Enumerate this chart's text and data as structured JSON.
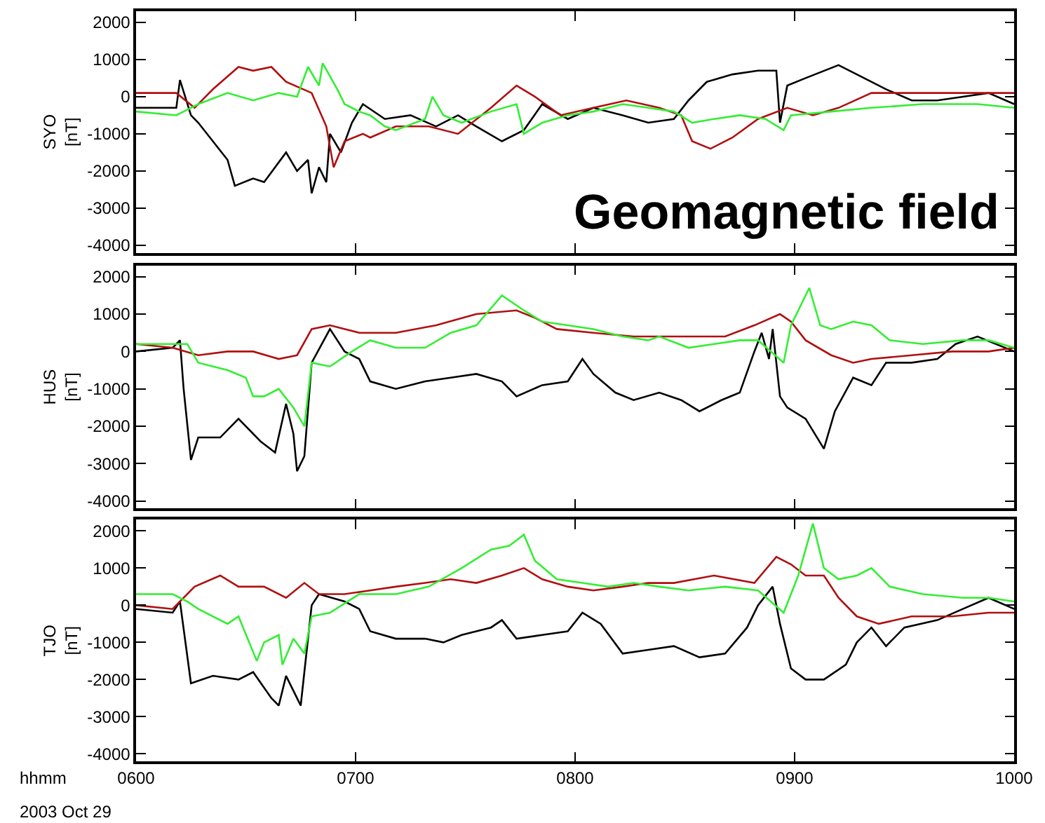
{
  "chart_data": [
    {
      "type": "line",
      "ylabel": "SYO\n[nT]",
      "annotations": [
        "Geomagnetic field"
      ],
      "xlim": [
        "2003-10-29T06:00",
        "2003-10-29T10:00"
      ],
      "xticks": [
        {
          "value": "2003-10-29T06:00",
          "label": null
        },
        {
          "value": "2003-10-29T07:00",
          "label": null
        },
        {
          "value": "2003-10-29T08:00",
          "label": null
        },
        {
          "value": "2003-10-29T09:00",
          "label": null
        },
        {
          "value": "2003-10-29T10:00",
          "label": null
        }
      ],
      "ylim": [
        -4200,
        2300
      ],
      "yticks": [
        -4000,
        -3000,
        -2000,
        -1000,
        0,
        1000,
        2000
      ],
      "tick_labels": "y",
      "marker": "none",
      "line_style": "solid",
      "series": [
        {
          "color": "#000000",
          "x": [
            "2003-10-29T06:00",
            "2003-10-29T06:11",
            "2003-10-29T06:12",
            "2003-10-29T06:15",
            "2003-10-29T06:17",
            "2003-10-29T06:25",
            "2003-10-29T06:27",
            "2003-10-29T06:32",
            "2003-10-29T06:35",
            "2003-10-29T06:41",
            "2003-10-29T06:44",
            "2003-10-29T06:47",
            "2003-10-29T06:48",
            "2003-10-29T06:50",
            "2003-10-29T06:52",
            "2003-10-29T06:53",
            "2003-10-29T06:56",
            "2003-10-29T06:59",
            "2003-10-29T07:02",
            "2003-10-29T07:08",
            "2003-10-29T07:15",
            "2003-10-29T07:22",
            "2003-10-29T07:28",
            "2003-10-29T07:33",
            "2003-10-29T07:40",
            "2003-10-29T07:46",
            "2003-10-29T07:51",
            "2003-10-29T07:58",
            "2003-10-29T08:05",
            "2003-10-29T08:13",
            "2003-10-29T08:20",
            "2003-10-29T08:27",
            "2003-10-29T08:31",
            "2003-10-29T08:36",
            "2003-10-29T08:43",
            "2003-10-29T08:50",
            "2003-10-29T08:55",
            "2003-10-29T08:56",
            "2003-10-29T08:58",
            "2003-10-29T09:03",
            "2003-10-29T09:12",
            "2003-10-29T09:17",
            "2003-10-29T09:25",
            "2003-10-29T09:32",
            "2003-10-29T09:39",
            "2003-10-29T09:46",
            "2003-10-29T09:53",
            "2003-10-29T10:00"
          ],
          "values": [
            -300,
            -300,
            450,
            -500,
            -700,
            -1700,
            -2400,
            -2200,
            -2300,
            -1500,
            -2000,
            -1700,
            -2600,
            -1900,
            -2300,
            -1000,
            -1500,
            -700,
            -200,
            -600,
            -500,
            -800,
            -500,
            -800,
            -1200,
            -900,
            -200,
            -600,
            -300,
            -500,
            -700,
            -600,
            -100,
            400,
            600,
            700,
            700,
            -700,
            300,
            500,
            850,
            600,
            200,
            -100,
            -100,
            0,
            100,
            -200
          ]
        },
        {
          "color": "#b01010",
          "x": [
            "2003-10-29T06:00",
            "2003-10-29T06:11",
            "2003-10-29T06:16",
            "2003-10-29T06:21",
            "2003-10-29T06:28",
            "2003-10-29T06:32",
            "2003-10-29T06:37",
            "2003-10-29T06:41",
            "2003-10-29T06:48",
            "2003-10-29T06:52",
            "2003-10-29T06:54",
            "2003-10-29T06:57",
            "2003-10-29T07:02",
            "2003-10-29T07:04",
            "2003-10-29T07:11",
            "2003-10-29T07:20",
            "2003-10-29T07:28",
            "2003-10-29T07:37",
            "2003-10-29T07:44",
            "2003-10-29T07:49",
            "2003-10-29T07:56",
            "2003-10-29T08:05",
            "2003-10-29T08:14",
            "2003-10-29T08:23",
            "2003-10-29T08:29",
            "2003-10-29T08:32",
            "2003-10-29T08:37",
            "2003-10-29T08:43",
            "2003-10-29T08:50",
            "2003-10-29T08:58",
            "2003-10-29T09:05",
            "2003-10-29T09:12",
            "2003-10-29T09:21",
            "2003-10-29T09:35",
            "2003-10-29T09:46",
            "2003-10-29T10:00"
          ],
          "values": [
            100,
            100,
            -300,
            200,
            800,
            700,
            800,
            400,
            100,
            -800,
            -1900,
            -1200,
            -1000,
            -1100,
            -800,
            -800,
            -1000,
            -300,
            300,
            0,
            -500,
            -300,
            -100,
            -300,
            -500,
            -1200,
            -1400,
            -1100,
            -600,
            -300,
            -500,
            -300,
            100,
            100,
            100,
            100
          ]
        },
        {
          "color": "#33ee33",
          "x": [
            "2003-10-29T06:00",
            "2003-10-29T06:11",
            "2003-10-29T06:17",
            "2003-10-29T06:25",
            "2003-10-29T06:32",
            "2003-10-29T06:39",
            "2003-10-29T06:44",
            "2003-10-29T06:47",
            "2003-10-29T06:50",
            "2003-10-29T06:51",
            "2003-10-29T06:55",
            "2003-10-29T06:57",
            "2003-10-29T07:01",
            "2003-10-29T07:04",
            "2003-10-29T07:08",
            "2003-10-29T07:11",
            "2003-10-29T07:19",
            "2003-10-29T07:21",
            "2003-10-29T07:24",
            "2003-10-29T07:29",
            "2003-10-29T07:37",
            "2003-10-29T07:44",
            "2003-10-29T07:46",
            "2003-10-29T07:51",
            "2003-10-29T07:58",
            "2003-10-29T08:05",
            "2003-10-29T08:13",
            "2003-10-29T08:20",
            "2003-10-29T08:27",
            "2003-10-29T08:32",
            "2003-10-29T08:38",
            "2003-10-29T08:45",
            "2003-10-29T08:52",
            "2003-10-29T08:57",
            "2003-10-29T08:59",
            "2003-10-29T09:10",
            "2003-10-29T09:21",
            "2003-10-29T09:35",
            "2003-10-29T09:50",
            "2003-10-29T10:00"
          ],
          "values": [
            -400,
            -500,
            -200,
            100,
            -100,
            100,
            0,
            800,
            300,
            900,
            200,
            -200,
            -400,
            -500,
            -800,
            -900,
            -600,
            0,
            -500,
            -700,
            -400,
            -200,
            -1000,
            -700,
            -500,
            -400,
            -200,
            -300,
            -400,
            -700,
            -600,
            -500,
            -600,
            -900,
            -500,
            -400,
            -300,
            -200,
            -200,
            -300
          ]
        }
      ]
    },
    {
      "type": "line",
      "ylabel": "HUS\n[nT]",
      "xlim": [
        "2003-10-29T06:00",
        "2003-10-29T10:00"
      ],
      "xticks": [
        {
          "value": "2003-10-29T06:00",
          "label": null
        },
        {
          "value": "2003-10-29T07:00",
          "label": null
        },
        {
          "value": "2003-10-29T08:00",
          "label": null
        },
        {
          "value": "2003-10-29T09:00",
          "label": null
        },
        {
          "value": "2003-10-29T10:00",
          "label": null
        }
      ],
      "ylim": [
        -4200,
        2300
      ],
      "yticks": [
        -4000,
        -3000,
        -2000,
        -1000,
        0,
        1000,
        2000
      ],
      "tick_labels": "y",
      "marker": "none",
      "line_style": "solid",
      "series": [
        {
          "color": "#000000",
          "x": [
            "2003-10-29T06:00",
            "2003-10-29T06:10",
            "2003-10-29T06:12",
            "2003-10-29T06:13",
            "2003-10-29T06:15",
            "2003-10-29T06:17",
            "2003-10-29T06:23",
            "2003-10-29T06:28",
            "2003-10-29T06:34",
            "2003-10-29T06:38",
            "2003-10-29T06:41",
            "2003-10-29T06:43",
            "2003-10-29T06:44",
            "2003-10-29T06:46",
            "2003-10-29T06:48",
            "2003-10-29T06:53",
            "2003-10-29T06:57",
            "2003-10-29T07:01",
            "2003-10-29T07:04",
            "2003-10-29T07:11",
            "2003-10-29T07:19",
            "2003-10-29T07:26",
            "2003-10-29T07:33",
            "2003-10-29T07:40",
            "2003-10-29T07:44",
            "2003-10-29T07:51",
            "2003-10-29T07:58",
            "2003-10-29T08:02",
            "2003-10-29T08:05",
            "2003-10-29T08:11",
            "2003-10-29T08:16",
            "2003-10-29T08:23",
            "2003-10-29T08:29",
            "2003-10-29T08:34",
            "2003-10-29T08:40",
            "2003-10-29T08:45",
            "2003-10-29T08:49",
            "2003-10-29T08:51",
            "2003-10-29T08:53",
            "2003-10-29T08:54",
            "2003-10-29T08:56",
            "2003-10-29T08:58",
            "2003-10-29T09:03",
            "2003-10-29T09:08",
            "2003-10-29T09:11",
            "2003-10-29T09:16",
            "2003-10-29T09:21",
            "2003-10-29T09:25",
            "2003-10-29T09:32",
            "2003-10-29T09:39",
            "2003-10-29T09:44",
            "2003-10-29T09:50",
            "2003-10-29T10:00"
          ],
          "values": [
            0,
            100,
            300,
            -1000,
            -2900,
            -2300,
            -2300,
            -1800,
            -2400,
            -2700,
            -1400,
            -2200,
            -3200,
            -2800,
            -300,
            600,
            0,
            -200,
            -800,
            -1000,
            -800,
            -700,
            -600,
            -800,
            -1200,
            -900,
            -800,
            -200,
            -600,
            -1100,
            -1300,
            -1100,
            -1300,
            -1600,
            -1300,
            -1100,
            0,
            500,
            -200,
            600,
            -1200,
            -1500,
            -1800,
            -2600,
            -1600,
            -700,
            -900,
            -300,
            -300,
            -200,
            200,
            400,
            0
          ]
        },
        {
          "color": "#b01010",
          "x": [
            "2003-10-29T06:00",
            "2003-10-29T06:10",
            "2003-10-29T06:17",
            "2003-10-29T06:25",
            "2003-10-29T06:32",
            "2003-10-29T06:39",
            "2003-10-29T06:44",
            "2003-10-29T06:48",
            "2003-10-29T06:53",
            "2003-10-29T07:01",
            "2003-10-29T07:11",
            "2003-10-29T07:22",
            "2003-10-29T07:33",
            "2003-10-29T07:44",
            "2003-10-29T07:49",
            "2003-10-29T07:55",
            "2003-10-29T08:05",
            "2003-10-29T08:16",
            "2003-10-29T08:23",
            "2003-10-29T08:34",
            "2003-10-29T08:41",
            "2003-10-29T08:49",
            "2003-10-29T08:56",
            "2003-10-29T08:59",
            "2003-10-29T09:03",
            "2003-10-29T09:10",
            "2003-10-29T09:16",
            "2003-10-29T09:21",
            "2003-10-29T09:32",
            "2003-10-29T09:43",
            "2003-10-29T09:53",
            "2003-10-29T10:00"
          ],
          "values": [
            200,
            100,
            -100,
            0,
            0,
            -200,
            -100,
            600,
            700,
            500,
            500,
            700,
            1000,
            1100,
            900,
            600,
            500,
            400,
            400,
            400,
            400,
            700,
            1000,
            800,
            300,
            -100,
            -300,
            -200,
            -100,
            0,
            0,
            100
          ]
        },
        {
          "color": "#33ee33",
          "x": [
            "2003-10-29T06:00",
            "2003-10-29T06:08",
            "2003-10-29T06:14",
            "2003-10-29T06:17",
            "2003-10-29T06:25",
            "2003-10-29T06:30",
            "2003-10-29T06:32",
            "2003-10-29T06:35",
            "2003-10-29T06:39",
            "2003-10-29T06:43",
            "2003-10-29T06:46",
            "2003-10-29T06:48",
            "2003-10-29T06:53",
            "2003-10-29T06:59",
            "2003-10-29T07:04",
            "2003-10-29T07:11",
            "2003-10-29T07:19",
            "2003-10-29T07:26",
            "2003-10-29T07:33",
            "2003-10-29T07:40",
            "2003-10-29T07:46",
            "2003-10-29T07:51",
            "2003-10-29T07:58",
            "2003-10-29T08:05",
            "2003-10-29T08:13",
            "2003-10-29T08:20",
            "2003-10-29T08:23",
            "2003-10-29T08:31",
            "2003-10-29T08:38",
            "2003-10-29T08:45",
            "2003-10-29T08:50",
            "2003-10-29T08:57",
            "2003-10-29T08:59",
            "2003-10-29T09:04",
            "2003-10-29T09:07",
            "2003-10-29T09:10",
            "2003-10-29T09:16",
            "2003-10-29T09:21",
            "2003-10-29T09:26",
            "2003-10-29T09:35",
            "2003-10-29T09:46",
            "2003-10-29T09:53",
            "2003-10-29T10:00"
          ],
          "values": [
            200,
            200,
            200,
            -300,
            -500,
            -700,
            -1200,
            -1200,
            -1000,
            -1500,
            -2000,
            -300,
            -400,
            0,
            300,
            100,
            100,
            500,
            700,
            1500,
            1100,
            800,
            700,
            600,
            400,
            300,
            400,
            100,
            200,
            300,
            300,
            -300,
            700,
            1700,
            700,
            600,
            800,
            700,
            300,
            200,
            300,
            300,
            100
          ]
        }
      ]
    },
    {
      "type": "line",
      "ylabel": "TJO\n[nT]",
      "annotations": [
        "hhmm",
        "2003 Oct 29"
      ],
      "xlim": [
        "2003-10-29T06:00",
        "2003-10-29T10:00"
      ],
      "xticks": [
        {
          "value": "2003-10-29T06:00",
          "label": "0600"
        },
        {
          "value": "2003-10-29T07:00",
          "label": "0700"
        },
        {
          "value": "2003-10-29T08:00",
          "label": "0800"
        },
        {
          "value": "2003-10-29T09:00",
          "label": "0900"
        },
        {
          "value": "2003-10-29T10:00",
          "label": "1000"
        }
      ],
      "ylim": [
        -4200,
        2300
      ],
      "yticks": [
        -4000,
        -3000,
        -2000,
        -1000,
        0,
        1000,
        2000
      ],
      "marker": "none",
      "line_style": "solid",
      "series": [
        {
          "color": "#000000",
          "x": [
            "2003-10-29T06:00",
            "2003-10-29T06:10",
            "2003-10-29T06:12",
            "2003-10-29T06:15",
            "2003-10-29T06:21",
            "2003-10-29T06:28",
            "2003-10-29T06:32",
            "2003-10-29T06:37",
            "2003-10-29T06:39",
            "2003-10-29T06:41",
            "2003-10-29T06:44",
            "2003-10-29T06:45",
            "2003-10-29T06:48",
            "2003-10-29T06:50",
            "2003-10-29T06:57",
            "2003-10-29T07:01",
            "2003-10-29T07:04",
            "2003-10-29T07:11",
            "2003-10-29T07:19",
            "2003-10-29T07:24",
            "2003-10-29T07:29",
            "2003-10-29T07:37",
            "2003-10-29T07:40",
            "2003-10-29T07:44",
            "2003-10-29T07:51",
            "2003-10-29T07:58",
            "2003-10-29T08:02",
            "2003-10-29T08:07",
            "2003-10-29T08:13",
            "2003-10-29T08:20",
            "2003-10-29T08:27",
            "2003-10-29T08:34",
            "2003-10-29T08:41",
            "2003-10-29T08:47",
            "2003-10-29T08:50",
            "2003-10-29T08:54",
            "2003-10-29T08:56",
            "2003-10-29T08:59",
            "2003-10-29T09:03",
            "2003-10-29T09:08",
            "2003-10-29T09:14",
            "2003-10-29T09:17",
            "2003-10-29T09:21",
            "2003-10-29T09:25",
            "2003-10-29T09:30",
            "2003-10-29T09:39",
            "2003-10-29T09:46",
            "2003-10-29T09:53",
            "2003-10-29T10:00"
          ],
          "values": [
            -100,
            -200,
            100,
            -2100,
            -1900,
            -2000,
            -1800,
            -2500,
            -2700,
            -1900,
            -2500,
            -2700,
            0,
            300,
            100,
            -100,
            -700,
            -900,
            -900,
            -1000,
            -800,
            -600,
            -400,
            -900,
            -800,
            -700,
            -200,
            -500,
            -1300,
            -1200,
            -1100,
            -1400,
            -1300,
            -600,
            0,
            500,
            -500,
            -1700,
            -2000,
            -2000,
            -1600,
            -1000,
            -600,
            -1100,
            -600,
            -400,
            -100,
            200,
            -100
          ]
        },
        {
          "color": "#b01010",
          "x": [
            "2003-10-29T06:00",
            "2003-10-29T06:10",
            "2003-10-29T06:16",
            "2003-10-29T06:23",
            "2003-10-29T06:28",
            "2003-10-29T06:35",
            "2003-10-29T06:41",
            "2003-10-29T06:46",
            "2003-10-29T06:50",
            "2003-10-29T06:57",
            "2003-10-29T07:04",
            "2003-10-29T07:11",
            "2003-10-29T07:19",
            "2003-10-29T07:26",
            "2003-10-29T07:33",
            "2003-10-29T07:40",
            "2003-10-29T07:46",
            "2003-10-29T07:51",
            "2003-10-29T07:58",
            "2003-10-29T08:05",
            "2003-10-29T08:13",
            "2003-10-29T08:20",
            "2003-10-29T08:27",
            "2003-10-29T08:38",
            "2003-10-29T08:49",
            "2003-10-29T08:55",
            "2003-10-29T08:59",
            "2003-10-29T09:03",
            "2003-10-29T09:08",
            "2003-10-29T09:12",
            "2003-10-29T09:17",
            "2003-10-29T09:23",
            "2003-10-29T09:32",
            "2003-10-29T09:43",
            "2003-10-29T09:53",
            "2003-10-29T10:00"
          ],
          "values": [
            0,
            -100,
            500,
            800,
            500,
            500,
            200,
            600,
            300,
            300,
            400,
            500,
            600,
            700,
            600,
            800,
            1000,
            700,
            500,
            400,
            500,
            600,
            600,
            800,
            600,
            1300,
            1100,
            800,
            800,
            200,
            -300,
            -500,
            -300,
            -300,
            -200,
            -200
          ]
        },
        {
          "color": "#33ee33",
          "x": [
            "2003-10-29T06:00",
            "2003-10-29T06:10",
            "2003-10-29T06:14",
            "2003-10-29T06:17",
            "2003-10-29T06:25",
            "2003-10-29T06:28",
            "2003-10-29T06:33",
            "2003-10-29T06:35",
            "2003-10-29T06:39",
            "2003-10-29T06:40",
            "2003-10-29T06:43",
            "2003-10-29T06:46",
            "2003-10-29T06:48",
            "2003-10-29T06:53",
            "2003-10-29T07:01",
            "2003-10-29T07:11",
            "2003-10-29T07:20",
            "2003-10-29T07:29",
            "2003-10-29T07:37",
            "2003-10-29T07:42",
            "2003-10-29T07:46",
            "2003-10-29T07:49",
            "2003-10-29T07:55",
            "2003-10-29T08:02",
            "2003-10-29T08:09",
            "2003-10-29T08:16",
            "2003-10-29T08:23",
            "2003-10-29T08:31",
            "2003-10-29T08:41",
            "2003-10-29T08:50",
            "2003-10-29T08:57",
            "2003-10-29T09:01",
            "2003-10-29T09:05",
            "2003-10-29T09:08",
            "2003-10-29T09:12",
            "2003-10-29T09:17",
            "2003-10-29T09:21",
            "2003-10-29T09:26",
            "2003-10-29T09:35",
            "2003-10-29T09:46",
            "2003-10-29T09:53",
            "2003-10-29T10:00"
          ],
          "values": [
            300,
            300,
            100,
            -100,
            -500,
            -300,
            -1500,
            -1000,
            -800,
            -1600,
            -900,
            -1300,
            -300,
            -200,
            300,
            300,
            500,
            1000,
            1500,
            1600,
            1900,
            1200,
            700,
            600,
            500,
            600,
            500,
            400,
            500,
            400,
            -200,
            800,
            2200,
            1000,
            700,
            800,
            1000,
            500,
            300,
            200,
            200,
            100
          ]
        }
      ]
    }
  ]
}
